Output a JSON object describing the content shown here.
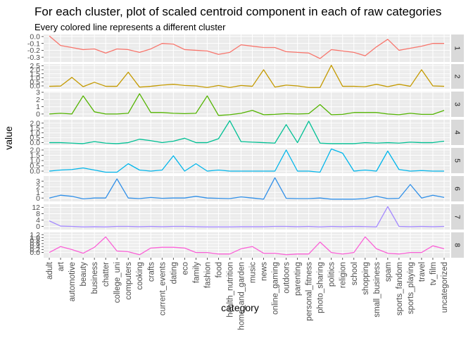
{
  "chart_data": {
    "type": "line",
    "title": "For each cluster, plot of scaled centroid component in each of raw categories",
    "subtitle": "Every colored line represents a different cluster",
    "xlabel": "category",
    "ylabel": "value",
    "grid": true,
    "facet_layout": "stacked-rows-strip-right",
    "categories": [
      "adult",
      "art",
      "automotive",
      "beauty",
      "business",
      "chatter",
      "college_uni",
      "computers",
      "cooking",
      "crafts",
      "current_events",
      "dating",
      "eco",
      "family",
      "fashion",
      "food",
      "health_nutrition",
      "home_and_garden",
      "music",
      "news",
      "online_gaming",
      "outdoors",
      "parenting",
      "personal_fitness",
      "photo_sharing",
      "politics",
      "religion",
      "school",
      "shopping",
      "small_business",
      "spam",
      "sports_fandom",
      "sports_playing",
      "travel",
      "tv_film",
      "uncategorized"
    ],
    "series": [
      {
        "name": "1",
        "color": "#F8766D",
        "ylim": [
          -0.37,
          0.03
        ],
        "yticks": [
          -0.3,
          -0.2,
          -0.1,
          0.0
        ],
        "ytick_labels": [
          "-0.3",
          "-0.2",
          "-0.1",
          "0.0"
        ],
        "values": [
          0.01,
          -0.13,
          -0.16,
          -0.19,
          -0.18,
          -0.24,
          -0.18,
          -0.19,
          -0.23,
          -0.18,
          -0.1,
          -0.11,
          -0.19,
          -0.2,
          -0.21,
          -0.26,
          -0.23,
          -0.12,
          -0.14,
          -0.16,
          -0.16,
          -0.22,
          -0.23,
          -0.24,
          -0.32,
          -0.19,
          -0.21,
          -0.23,
          -0.28,
          -0.15,
          -0.04,
          -0.2,
          -0.17,
          -0.14,
          -0.1,
          -0.1
        ]
      },
      {
        "name": "2",
        "color": "#C49A00",
        "ylim": [
          -0.35,
          2.7
        ],
        "yticks": [
          0.0,
          0.5,
          1.0,
          1.5,
          2.0,
          2.5
        ],
        "ytick_labels": [
          "0.0",
          "0.5",
          "1.0",
          "1.5",
          "2.0",
          "2.5"
        ],
        "values": [
          -0.05,
          -0.02,
          1.05,
          -0.1,
          0.45,
          -0.05,
          -0.05,
          1.7,
          -0.15,
          -0.05,
          0.1,
          0.2,
          0.05,
          0.0,
          -0.2,
          0.05,
          -0.2,
          0.05,
          -0.05,
          2.0,
          -0.15,
          0.1,
          0.0,
          -0.2,
          -0.2,
          2.55,
          -0.05,
          -0.05,
          -0.1,
          0.2,
          -0.1,
          0.2,
          -0.05,
          2.0,
          0.0,
          -0.05
        ]
      },
      {
        "name": "3",
        "color": "#53B400",
        "ylim": [
          -0.4,
          3.1
        ],
        "yticks": [
          0,
          1,
          2,
          3
        ],
        "ytick_labels": [
          "0",
          "1",
          "2",
          "3"
        ],
        "values": [
          0.0,
          0.1,
          0.0,
          2.5,
          0.3,
          0.0,
          0.0,
          0.1,
          2.8,
          0.2,
          0.2,
          0.1,
          0.05,
          0.1,
          2.5,
          -0.2,
          -0.1,
          0.1,
          0.5,
          -0.1,
          -0.05,
          0.05,
          0.0,
          0.05,
          1.3,
          -0.1,
          -0.05,
          0.2,
          0.2,
          0.2,
          0.0,
          -0.1,
          0.1,
          -0.05,
          -0.05,
          0.5
        ]
      },
      {
        "name": "4",
        "color": "#00C094",
        "ylim": [
          -0.25,
          2.35
        ],
        "yticks": [
          0.0,
          0.5,
          1.0,
          1.5,
          2.0
        ],
        "ytick_labels": [
          "0.0",
          "0.5",
          "1.0",
          "1.5",
          "2.0"
        ],
        "values": [
          0.0,
          0.0,
          -0.05,
          -0.1,
          0.1,
          -0.05,
          -0.1,
          0.0,
          0.35,
          0.2,
          0.0,
          0.15,
          0.45,
          0.0,
          0.0,
          0.4,
          2.25,
          0.1,
          0.05,
          0.0,
          -0.05,
          1.85,
          0.0,
          2.2,
          -0.05,
          -0.1,
          -0.1,
          -0.1,
          0.0,
          -0.05,
          0.0,
          -0.05,
          0.05,
          0.0,
          0.0,
          0.15
        ]
      },
      {
        "name": "5",
        "color": "#00B6EB",
        "ylim": [
          -0.2,
          2.2
        ],
        "yticks": [
          0.0,
          0.5,
          1.0,
          1.5,
          2.0
        ],
        "ytick_labels": [
          "0.0",
          "0.5",
          "1.0",
          "1.5",
          "2.0"
        ],
        "values": [
          0.0,
          0.1,
          0.15,
          0.3,
          0.1,
          -0.1,
          -0.1,
          0.7,
          0.1,
          0.0,
          0.1,
          1.45,
          0.0,
          0.7,
          0.0,
          0.1,
          0.0,
          0.0,
          0.0,
          0.0,
          0.0,
          2.0,
          0.0,
          0.0,
          -0.1,
          2.1,
          1.7,
          0.0,
          0.1,
          0.0,
          1.9,
          0.15,
          0.0,
          0.05,
          0.0,
          0.0
        ]
      },
      {
        "name": "6",
        "color": "#2F8FE8",
        "ylim": [
          -0.6,
          3.9
        ],
        "yticks": [
          0,
          1,
          2,
          3
        ],
        "ytick_labels": [
          "0",
          "1",
          "2",
          "3"
        ],
        "values": [
          0.0,
          0.5,
          0.3,
          -0.15,
          0.0,
          0.0,
          3.4,
          0.0,
          -0.1,
          0.1,
          -0.05,
          0.0,
          0.0,
          0.3,
          0.0,
          -0.05,
          -0.1,
          0.2,
          0.0,
          -0.2,
          3.6,
          -0.05,
          -0.1,
          -0.1,
          0.0,
          -0.2,
          -0.2,
          -0.2,
          -0.1,
          0.3,
          -0.1,
          -0.05,
          2.4,
          0.0,
          0.5,
          0.1
        ]
      },
      {
        "name": "7",
        "color": "#A58AFF",
        "ylim": [
          -2.0,
          14.0
        ],
        "yticks": [
          0,
          4,
          8,
          12
        ],
        "ytick_labels": [
          "0",
          "4",
          "8",
          "12"
        ],
        "values": [
          3.5,
          0.2,
          0.0,
          -0.3,
          -0.2,
          -0.3,
          0.0,
          0.0,
          -0.2,
          0.0,
          -0.2,
          0.0,
          0.0,
          -0.2,
          -0.3,
          -0.3,
          -0.3,
          -0.2,
          -0.2,
          -0.2,
          0.0,
          0.0,
          -0.2,
          0.0,
          -0.3,
          0.0,
          -0.2,
          0.0,
          -0.1,
          -0.3,
          12.5,
          0.0,
          -0.2,
          0.0,
          -0.2,
          0.0
        ]
      },
      {
        "name": "8",
        "color": "#FB61D7",
        "ylim": [
          -0.35,
          1.35
        ],
        "yticks": [
          0.0,
          0.2,
          0.4,
          0.6,
          0.8,
          1.0,
          1.2
        ],
        "ytick_labels": [
          "0.0",
          "0.2",
          "0.4",
          "0.6",
          "0.8",
          "1.0",
          "1.2"
        ],
        "values": [
          0.0,
          0.4,
          0.2,
          -0.05,
          0.35,
          1.05,
          0.1,
          0.05,
          -0.15,
          0.3,
          0.35,
          0.35,
          0.3,
          0.0,
          0.0,
          -0.1,
          -0.1,
          0.25,
          0.4,
          -0.05,
          -0.05,
          -0.15,
          -0.1,
          -0.1,
          0.7,
          0.0,
          -0.1,
          0.0,
          1.05,
          0.25,
          -0.05,
          -0.1,
          0.0,
          0.0,
          0.45,
          0.25
        ]
      }
    ]
  }
}
